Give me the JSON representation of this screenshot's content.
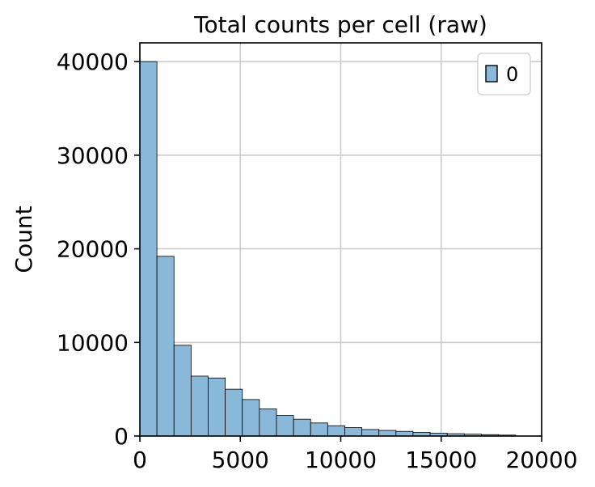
{
  "chart_data": {
    "type": "bar",
    "title": "Total counts per cell (raw)",
    "xlabel": "",
    "ylabel": "Count",
    "xlim": [
      0,
      20000
    ],
    "ylim": [
      0,
      42000
    ],
    "x_ticks": [
      0,
      5000,
      10000,
      15000,
      20000
    ],
    "x_tick_labels": [
      "0",
      "5000",
      "10000",
      "15000",
      "20000"
    ],
    "y_ticks": [
      0,
      10000,
      20000,
      30000,
      40000
    ],
    "y_tick_labels": [
      "0",
      "10000",
      "20000",
      "30000",
      "40000"
    ],
    "grid": true,
    "legend_position": "top-right",
    "bar_color": "#8ab8d8",
    "bar_edge_color": "#000000",
    "series": [
      {
        "name": "0",
        "bin_edges": [
          0,
          850,
          1700,
          2550,
          3400,
          4250,
          5100,
          5950,
          6800,
          7650,
          8500,
          9350,
          10200,
          11050,
          11900,
          12750,
          13600,
          14450,
          15300,
          16150,
          17000,
          17850,
          18700
        ],
        "values": [
          40000,
          19200,
          9700,
          6400,
          6200,
          5000,
          3900,
          2900,
          2200,
          1800,
          1400,
          1100,
          900,
          700,
          600,
          500,
          400,
          300,
          250,
          200,
          150,
          100
        ]
      }
    ]
  }
}
